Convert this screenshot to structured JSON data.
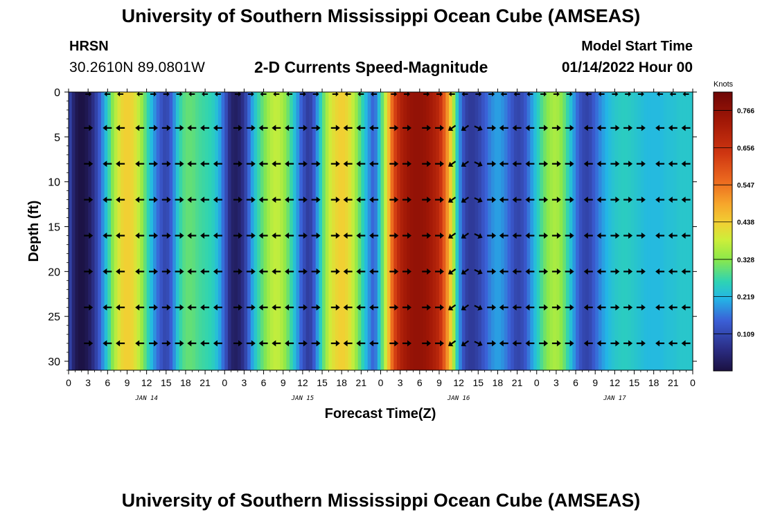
{
  "header": {
    "title": "University of Southern Mississippi Ocean Cube (AMSEAS)",
    "station_name": "HRSN",
    "station_coords": "30.2610N  89.0801W",
    "plot_title": "2-D Currents Speed-Magnitude",
    "model_start_label": "Model Start Time",
    "model_start_value": "01/14/2022 Hour 00"
  },
  "footer": {
    "title": "University of Southern Mississippi Ocean Cube (AMSEAS)"
  },
  "chart_data": {
    "type": "heatmap",
    "title": "2-D Currents Speed-Magnitude",
    "xlabel": "Forecast Time(Z)",
    "ylabel": "Depth (ft)",
    "x_range_hours": [
      0,
      96
    ],
    "ylim": [
      0,
      31
    ],
    "y_inverted": true,
    "x_tick_labels": [
      "0",
      "3",
      "6",
      "9",
      "12",
      "15",
      "18",
      "21",
      "0",
      "3",
      "6",
      "9",
      "12",
      "15",
      "18",
      "21",
      "0",
      "3",
      "6",
      "9",
      "12",
      "15",
      "18",
      "21",
      "0",
      "3",
      "6",
      "9",
      "12",
      "15",
      "18",
      "21",
      "0"
    ],
    "y_ticks": [
      0,
      5,
      10,
      15,
      20,
      25,
      30
    ],
    "date_labels": [
      {
        "label": "JAN 14",
        "hour": 12
      },
      {
        "label": "JAN 15",
        "hour": 36
      },
      {
        "label": "JAN 16",
        "hour": 60
      },
      {
        "label": "JAN 17",
        "hour": 84
      }
    ],
    "colorbar": {
      "label": "Knots",
      "ticks": [
        0.109,
        0.219,
        0.328,
        0.438,
        0.547,
        0.656,
        0.766
      ],
      "tick_labels": [
        "0.109",
        "0.219",
        "0.328",
        "0.438",
        "0.547",
        "0.656",
        "0.766"
      ],
      "range": [
        0.0,
        0.82
      ]
    },
    "speed_knots_by_hour": [
      [
        0,
        0.12
      ],
      [
        1,
        0.02
      ],
      [
        2,
        0.0
      ],
      [
        3,
        0.02
      ],
      [
        4,
        0.08
      ],
      [
        5,
        0.16
      ],
      [
        6,
        0.25
      ],
      [
        7,
        0.35
      ],
      [
        8,
        0.42
      ],
      [
        9,
        0.44
      ],
      [
        10,
        0.42
      ],
      [
        11,
        0.36
      ],
      [
        12,
        0.28
      ],
      [
        13,
        0.2
      ],
      [
        14,
        0.14
      ],
      [
        15,
        0.1
      ],
      [
        16,
        0.16
      ],
      [
        17,
        0.26
      ],
      [
        18,
        0.3
      ],
      [
        19,
        0.3
      ],
      [
        20,
        0.28
      ],
      [
        21,
        0.27
      ],
      [
        22,
        0.26
      ],
      [
        23,
        0.22
      ],
      [
        24,
        0.14
      ],
      [
        25,
        0.04
      ],
      [
        26,
        0.03
      ],
      [
        27,
        0.08
      ],
      [
        28,
        0.18
      ],
      [
        29,
        0.26
      ],
      [
        30,
        0.31
      ],
      [
        31,
        0.36
      ],
      [
        32,
        0.38
      ],
      [
        33,
        0.35
      ],
      [
        34,
        0.29
      ],
      [
        35,
        0.21
      ],
      [
        36,
        0.13
      ],
      [
        37,
        0.08
      ],
      [
        38,
        0.16
      ],
      [
        39,
        0.28
      ],
      [
        40,
        0.38
      ],
      [
        41,
        0.42
      ],
      [
        42,
        0.44
      ],
      [
        43,
        0.42
      ],
      [
        44,
        0.36
      ],
      [
        45,
        0.28
      ],
      [
        46,
        0.2
      ],
      [
        47,
        0.14
      ],
      [
        48,
        0.26
      ],
      [
        49,
        0.42
      ],
      [
        50,
        0.6
      ],
      [
        51,
        0.7
      ],
      [
        52,
        0.74
      ],
      [
        53,
        0.76
      ],
      [
        54,
        0.76
      ],
      [
        55,
        0.75
      ],
      [
        56,
        0.72
      ],
      [
        57,
        0.68
      ],
      [
        58,
        0.55
      ],
      [
        59,
        0.4
      ],
      [
        60,
        0.2
      ],
      [
        61,
        0.1
      ],
      [
        62,
        0.08
      ],
      [
        63,
        0.1
      ],
      [
        64,
        0.14
      ],
      [
        65,
        0.18
      ],
      [
        66,
        0.2
      ],
      [
        67,
        0.18
      ],
      [
        68,
        0.14
      ],
      [
        69,
        0.1
      ],
      [
        70,
        0.12
      ],
      [
        71,
        0.18
      ],
      [
        72,
        0.24
      ],
      [
        73,
        0.3
      ],
      [
        74,
        0.34
      ],
      [
        75,
        0.36
      ],
      [
        76,
        0.32
      ],
      [
        77,
        0.25
      ],
      [
        78,
        0.17
      ],
      [
        79,
        0.11
      ],
      [
        80,
        0.1
      ],
      [
        81,
        0.15
      ],
      [
        82,
        0.19
      ],
      [
        83,
        0.22
      ],
      [
        84,
        0.24
      ],
      [
        85,
        0.25
      ],
      [
        86,
        0.25
      ],
      [
        87,
        0.24
      ],
      [
        88,
        0.23
      ],
      [
        89,
        0.22
      ],
      [
        90,
        0.22
      ],
      [
        91,
        0.22
      ],
      [
        92,
        0.23
      ],
      [
        93,
        0.23
      ],
      [
        94,
        0.24
      ],
      [
        95,
        0.24
      ],
      [
        96,
        0.24
      ]
    ],
    "current_arrow_rows_ft": [
      4,
      8,
      12,
      16,
      20,
      24,
      28
    ],
    "current_arrow_hours": [
      3,
      6,
      8,
      11,
      13,
      15,
      17,
      19,
      21,
      23,
      26,
      28,
      30,
      32,
      34,
      36,
      38,
      41,
      43,
      45,
      47,
      50,
      52,
      55,
      57,
      59,
      61,
      63,
      65,
      67,
      69,
      71,
      73,
      75,
      77,
      80,
      82,
      84,
      86,
      88,
      91,
      93,
      95
    ],
    "predominant_direction": "alternating east / west"
  }
}
